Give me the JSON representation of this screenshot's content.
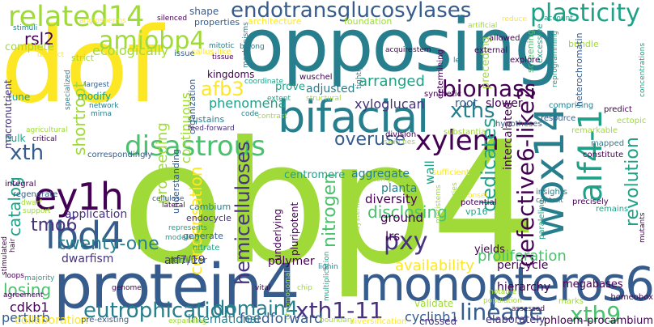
{
  "colors": {
    "dark_purple": "#440154",
    "indigo": "#46327e",
    "slate_blue": "#365c8d",
    "steel_blue": "#277f8e",
    "teal": "#1fa187",
    "green": "#4ac16d",
    "lime": "#a0da39",
    "yellow": "#fde725"
  },
  "words": [
    {
      "text": "obp4",
      "color": "#a0da39"
    },
    {
      "text": "dof",
      "color": "#fde725"
    },
    {
      "text": "opposing",
      "color": "#277f8e"
    },
    {
      "text": "protein4",
      "color": "#365c8d"
    },
    {
      "text": "monopteros6",
      "color": "#365c8d"
    },
    {
      "text": "bifacial",
      "color": "#277f8e"
    },
    {
      "text": "wox14",
      "color": "#277f8e"
    },
    {
      "text": "ey1h",
      "color": "#440154"
    },
    {
      "text": "lbd4",
      "color": "#365c8d"
    },
    {
      "text": "related14",
      "color": "#a0da39"
    },
    {
      "text": "endotransglucosylases",
      "color": "#365c8d"
    },
    {
      "text": "plasticity",
      "color": "#1fa187"
    },
    {
      "text": "amiobp4",
      "color": "#a0da39"
    },
    {
      "text": "alf4-1",
      "color": "#1fa187"
    },
    {
      "text": "defective6-like2",
      "color": "#440154"
    },
    {
      "text": "biomass",
      "color": "#440154"
    },
    {
      "text": "arranged",
      "color": "#1fa187"
    },
    {
      "text": "xths",
      "color": "#277f8e"
    },
    {
      "text": "overuse",
      "color": "#365c8d"
    },
    {
      "text": "xylem",
      "color": "#440154"
    },
    {
      "text": "disastrous",
      "color": "#4ac16d"
    },
    {
      "text": "eutrophication",
      "color": "#277f8e"
    },
    {
      "text": "xth1-11",
      "color": "#46327e"
    },
    {
      "text": "lineage",
      "color": "#365c8d"
    },
    {
      "text": "xth9",
      "color": "#4ac16d"
    },
    {
      "text": "pxy",
      "color": "#46327e"
    },
    {
      "text": "tmo6",
      "color": "#46327e"
    },
    {
      "text": "twenty-one",
      "color": "#277f8e"
    },
    {
      "text": "domain4",
      "color": "#277f8e"
    },
    {
      "text": "revolution",
      "color": "#1fa187"
    },
    {
      "text": "hemicelluloses",
      "color": "#46327e"
    },
    {
      "text": "xth",
      "color": "#365c8d"
    },
    {
      "text": "afb3",
      "color": "#fde725"
    },
    {
      "text": "rsl2",
      "color": "#440154"
    },
    {
      "text": "catalog",
      "color": "#1fa187"
    },
    {
      "text": "shortroot",
      "color": "#a0da39"
    },
    {
      "text": "nitrogen",
      "color": "#4ac16d"
    },
    {
      "text": "dedicates",
      "color": "#1fa187"
    },
    {
      "text": "availability",
      "color": "#fde725"
    },
    {
      "text": "disclosing",
      "color": "#4ac16d"
    },
    {
      "text": "proliferation",
      "color": "#4ac16d"
    },
    {
      "text": "losing",
      "color": "#4ac16d"
    },
    {
      "text": "condensation",
      "color": "#fde725"
    },
    {
      "text": "proceeding",
      "color": "#a0da39"
    },
    {
      "text": "continuous",
      "color": "#a0da39"
    },
    {
      "text": "phenomena",
      "color": "#1fa187"
    },
    {
      "text": "cdkb1",
      "color": "#440154"
    },
    {
      "text": "feedforward",
      "color": "#365c8d"
    },
    {
      "text": "cyclinb1",
      "color": "#365c8d"
    },
    {
      "text": "perturb",
      "color": "#365c8d"
    },
    {
      "text": "collaboration",
      "color": "#fde725"
    },
    {
      "text": "application",
      "color": "#46327e"
    },
    {
      "text": "dwarfism",
      "color": "#46327e"
    },
    {
      "text": "arf7/19",
      "color": "#46327e"
    },
    {
      "text": "polymer",
      "color": "#440154"
    },
    {
      "text": "international",
      "color": "#277f8e"
    },
    {
      "text": "validate",
      "color": "#a0da39"
    },
    {
      "text": "crossed",
      "color": "#46327e"
    },
    {
      "text": "elaborately",
      "color": "#46327e"
    },
    {
      "text": "phloem-procambium",
      "color": "#440154"
    },
    {
      "text": "megabases",
      "color": "#440154"
    },
    {
      "text": "hierarchy",
      "color": "#440154"
    },
    {
      "text": "pericycle",
      "color": "#440154"
    },
    {
      "text": "yields",
      "color": "#440154"
    },
    {
      "text": "lrs",
      "color": "#440154"
    },
    {
      "text": "ground",
      "color": "#440154"
    },
    {
      "text": "diversity",
      "color": "#440154"
    },
    {
      "text": "planta",
      "color": "#277f8e"
    },
    {
      "text": "aggregate",
      "color": "#277f8e"
    },
    {
      "text": "centromere",
      "color": "#1fa187"
    },
    {
      "text": "wall",
      "color": "#1fa187"
    },
    {
      "text": "xyloglucan",
      "color": "#46327e"
    },
    {
      "text": "adjusted",
      "color": "#277f8e"
    },
    {
      "text": "prove",
      "color": "#1fa187"
    },
    {
      "text": "kingdoms",
      "color": "#440154"
    },
    {
      "text": "ecologically",
      "color": "#a0da39"
    },
    {
      "text": "complete",
      "color": "#a0da39"
    },
    {
      "text": "strict",
      "color": "#a0da39"
    },
    {
      "text": "properties",
      "color": "#365c8d"
    },
    {
      "text": "shape",
      "color": "#365c8d"
    },
    {
      "text": "architecture",
      "color": "#fde725"
    },
    {
      "text": "foundation",
      "color": "#a0da39"
    },
    {
      "text": "bundle",
      "color": "#a0da39"
    },
    {
      "text": "root",
      "color": "#365c8d"
    },
    {
      "text": "slower",
      "color": "#440154"
    },
    {
      "text": "intercalated",
      "color": "#440154"
    },
    {
      "text": "vp16",
      "color": "#1fa187"
    },
    {
      "text": "generate",
      "color": "#365c8d"
    },
    {
      "text": "endocycle",
      "color": "#46327e"
    },
    {
      "text": "cambium",
      "color": "#277f8e"
    },
    {
      "text": "understanding",
      "color": "#365c8d"
    },
    {
      "text": "organization",
      "color": "#365c8d"
    },
    {
      "text": "tune",
      "color": "#1fa187"
    },
    {
      "text": "modify",
      "color": "#1fa187"
    },
    {
      "text": "bulk",
      "color": "#1fa187"
    },
    {
      "text": "integral",
      "color": "#440154"
    },
    {
      "text": "sustains",
      "color": "#277f8e"
    },
    {
      "text": "fertilizer",
      "color": "#365c8d"
    },
    {
      "text": "nitrate",
      "color": "#1fa187"
    },
    {
      "text": "underlying",
      "color": "#440154"
    },
    {
      "text": "pluripotent",
      "color": "#440154"
    },
    {
      "text": "precisely",
      "color": "#440154"
    },
    {
      "text": "remains",
      "color": "#1fa187"
    },
    {
      "text": "paraleling",
      "color": "#1fa187"
    },
    {
      "text": "predict",
      "color": "#440154"
    },
    {
      "text": "constitute",
      "color": "#440154"
    },
    {
      "text": "remarkable",
      "color": "#a0da39"
    },
    {
      "text": "mapped",
      "color": "#277f8e"
    },
    {
      "text": "heterochromatin",
      "color": "#365c8d"
    },
    {
      "text": "preceding",
      "color": "#a0da39"
    },
    {
      "text": "determining",
      "color": "#440154"
    },
    {
      "text": "screening",
      "color": "#4ac16d"
    },
    {
      "text": "excessive",
      "color": "#1fa187"
    },
    {
      "text": "macronutrient",
      "color": "#46327e"
    },
    {
      "text": "homeobox",
      "color": "#440154"
    },
    {
      "text": "marks",
      "color": "#a0da39"
    },
    {
      "text": "notable",
      "color": "#a0da39"
    },
    {
      "text": "population",
      "color": "#a0da39"
    },
    {
      "text": "boundary",
      "color": "#a0da39"
    },
    {
      "text": "diversification",
      "color": "#fde725"
    },
    {
      "text": "chip",
      "color": "#a0da39"
    },
    {
      "text": "lignin",
      "color": "#277f8e"
    },
    {
      "text": "multiplication",
      "color": "#1fa187"
    },
    {
      "text": "context",
      "color": "#277f8e"
    },
    {
      "text": "insights",
      "color": "#277f8e"
    },
    {
      "text": "potential",
      "color": "#440154"
    },
    {
      "text": "onset",
      "color": "#fde725"
    },
    {
      "text": "composed",
      "color": "#a0da39"
    },
    {
      "text": "series",
      "color": "#a0da39"
    },
    {
      "text": "meristems",
      "color": "#a0da39"
    },
    {
      "text": "division",
      "color": "#440154"
    },
    {
      "text": "switches",
      "color": "#a0da39"
    },
    {
      "text": "sufficient",
      "color": "#fde725"
    },
    {
      "text": "substantial",
      "color": "#a0da39"
    },
    {
      "text": "hypotheses",
      "color": "#365c8d"
    },
    {
      "text": "resource",
      "color": "#365c8d"
    },
    {
      "text": "comprising",
      "color": "#277f8e"
    },
    {
      "text": "synthetic",
      "color": "#440154"
    },
    {
      "text": "explore",
      "color": "#440154"
    },
    {
      "text": "allowed",
      "color": "#440154"
    },
    {
      "text": "acquire",
      "color": "#440154"
    },
    {
      "text": "stem",
      "color": "#440154"
    },
    {
      "text": "external",
      "color": "#440154"
    },
    {
      "text": "led",
      "color": "#277f8e"
    },
    {
      "text": "wuschel",
      "color": "#440154"
    },
    {
      "text": "callus-like",
      "color": "#fde725"
    },
    {
      "text": "belong",
      "color": "#277f8e"
    },
    {
      "text": "mitotic",
      "color": "#277f8e"
    },
    {
      "text": "tissue",
      "color": "#440154"
    },
    {
      "text": "silenced",
      "color": "#440154"
    },
    {
      "text": "issue",
      "color": "#365c8d"
    },
    {
      "text": "angiosperms",
      "color": "#fde725"
    },
    {
      "text": "stimuli",
      "color": "#277f8e"
    },
    {
      "text": "distinct",
      "color": "#fde725"
    },
    {
      "text": "largest",
      "color": "#365c8d"
    },
    {
      "text": "specialized",
      "color": "#277f8e"
    },
    {
      "text": "network",
      "color": "#277f8e"
    },
    {
      "text": "mirna",
      "color": "#277f8e"
    },
    {
      "text": "agricultural",
      "color": "#a0da39"
    },
    {
      "text": "critical",
      "color": "#440154"
    },
    {
      "text": "correspondingly",
      "color": "#365c8d"
    },
    {
      "text": "feed-forward",
      "color": "#46327e"
    },
    {
      "text": "code",
      "color": "#277f8e"
    },
    {
      "text": "regenerate",
      "color": "#365c8d"
    },
    {
      "text": "cellulose",
      "color": "#365c8d"
    },
    {
      "text": "lateral",
      "color": "#440154"
    },
    {
      "text": "represents",
      "color": "#1fa187"
    },
    {
      "text": "modeling",
      "color": "#1fa187"
    },
    {
      "text": "loops",
      "color": "#440154"
    },
    {
      "text": "majority",
      "color": "#1fa187"
    },
    {
      "text": "agreement",
      "color": "#440154"
    },
    {
      "text": "genome",
      "color": "#440154"
    },
    {
      "text": "pre-existing",
      "color": "#365c8d"
    },
    {
      "text": "expanding",
      "color": "#a0da39"
    },
    {
      "text": "vital",
      "color": "#440154"
    },
    {
      "text": "assessed",
      "color": "#440154"
    },
    {
      "text": "reduce",
      "color": "#fde725"
    },
    {
      "text": "artificial",
      "color": "#a0da39"
    },
    {
      "text": "account",
      "color": "#1fa187"
    },
    {
      "text": "reprogramming",
      "color": "#1fa187"
    },
    {
      "text": "ectopic",
      "color": "#a0da39"
    },
    {
      "text": "concentrations",
      "color": "#1fa187"
    },
    {
      "text": "dwarf",
      "color": "#a0da39"
    },
    {
      "text": "support",
      "color": "#a0da39"
    },
    {
      "text": "hair",
      "color": "#440154"
    },
    {
      "text": "stimulated",
      "color": "#440154"
    },
    {
      "text": "mutants",
      "color": "#440154"
    },
    {
      "text": "contrast",
      "color": "#a0da39"
    },
    {
      "text": "extent",
      "color": "#1fa187"
    },
    {
      "text": "structural",
      "color": "#a0da39"
    },
    {
      "text": "coordinate",
      "color": "#1fa187"
    },
    {
      "text": "mechanisms",
      "color": "#277f8e"
    },
    {
      "text": "tightly",
      "color": "#277f8e"
    },
    {
      "text": "systematic",
      "color": "#a0da39"
    },
    {
      "text": "chromosomal",
      "color": "#a0da39"
    }
  ]
}
